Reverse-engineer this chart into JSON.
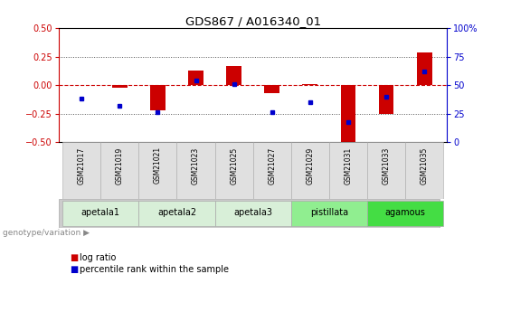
{
  "title": "GDS867 / A016340_01",
  "samples": [
    "GSM21017",
    "GSM21019",
    "GSM21021",
    "GSM21023",
    "GSM21025",
    "GSM21027",
    "GSM21029",
    "GSM21031",
    "GSM21033",
    "GSM21035"
  ],
  "log_ratios": [
    0.0,
    -0.02,
    -0.22,
    0.13,
    0.17,
    -0.07,
    0.01,
    -0.5,
    -0.25,
    0.29
  ],
  "percentile_ranks": [
    38,
    32,
    26,
    54,
    51,
    26,
    35,
    18,
    40,
    62
  ],
  "ylim_left": [
    -0.5,
    0.5
  ],
  "ylim_right": [
    0,
    100
  ],
  "yticks_left": [
    -0.5,
    -0.25,
    0.0,
    0.25,
    0.5
  ],
  "yticks_right": [
    0,
    25,
    50,
    75,
    100
  ],
  "groups": [
    {
      "label": "apetala1",
      "indices": [
        0,
        1
      ],
      "color": "#d8efd8"
    },
    {
      "label": "apetala2",
      "indices": [
        2,
        3
      ],
      "color": "#d8efd8"
    },
    {
      "label": "apetala3",
      "indices": [
        4,
        5
      ],
      "color": "#d8efd8"
    },
    {
      "label": "pistillata",
      "indices": [
        6,
        7
      ],
      "color": "#90ee90"
    },
    {
      "label": "agamous",
      "indices": [
        8,
        9
      ],
      "color": "#44dd44"
    }
  ],
  "bar_color": "#cc0000",
  "dot_color": "#0000cc",
  "zero_line_color": "#cc0000",
  "grid_color": "#555555",
  "bg_color": "#ffffff",
  "left_axis_color": "#cc0000",
  "right_axis_color": "#0000cc",
  "legend_bar_label": "log ratio",
  "legend_dot_label": "percentile rank within the sample",
  "genotype_label": "genotype/variation"
}
